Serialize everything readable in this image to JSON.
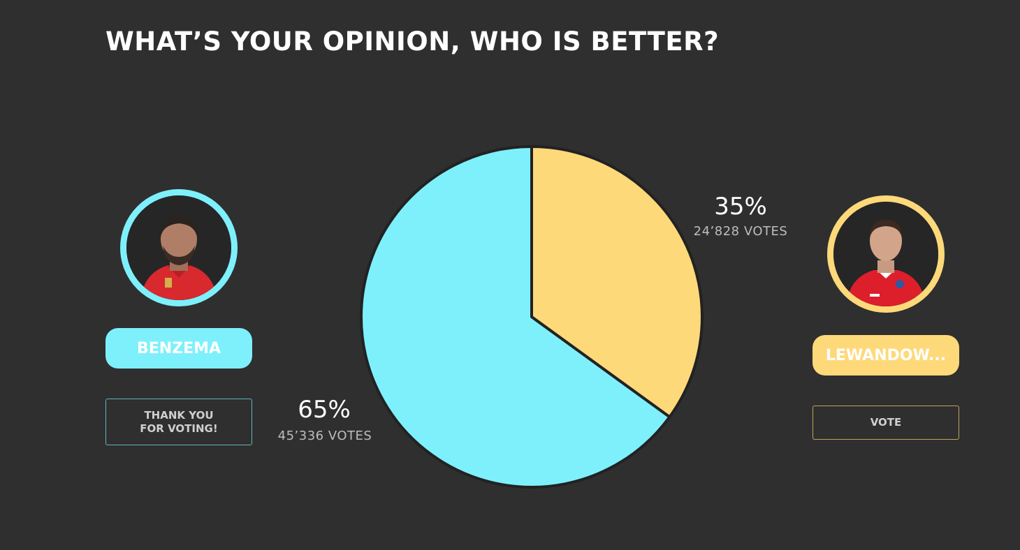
{
  "poll": {
    "title": "WHAT’S YOUR OPINION, WHO IS BETTER?"
  },
  "candidates": [
    {
      "name": "BENZEMA",
      "button_label": "THANK YOU\nFOR VOTING!",
      "percent_label": "65%",
      "votes_label": "45’336 VOTES",
      "color": "#7ef0fc"
    },
    {
      "name": "LEWANDOW...",
      "button_label": "VOTE",
      "percent_label": "35%",
      "votes_label": "24’828 VOTES",
      "color": "#fed97a"
    }
  ],
  "chart_data": {
    "type": "pie",
    "categories": [
      "BENZEMA",
      "LEWANDOW..."
    ],
    "values": [
      65,
      35
    ],
    "votes": [
      45336,
      24828
    ],
    "colors": [
      "#7ef0fc",
      "#fed97a"
    ],
    "title": "WHAT’S YOUR OPINION, WHO IS BETTER?"
  }
}
